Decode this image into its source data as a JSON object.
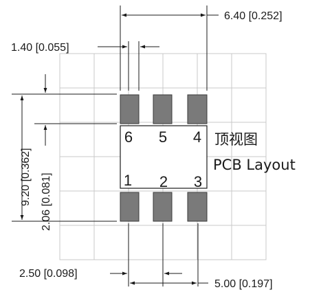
{
  "dimensions": {
    "overall_width": "6.40 [0.252]",
    "pad_width": "1.40 [0.055]",
    "overall_height": "9.20 [0.362]",
    "pad_height": "2.06 [0.081]",
    "pad_length": "2.50 [0.098]",
    "pitch": "5.00 [0.197]"
  },
  "pins": {
    "top": [
      "6",
      "5",
      "4"
    ],
    "bottom": [
      "1",
      "2",
      "3"
    ]
  },
  "title": {
    "chinese": "顶视图",
    "english": "PCB Layout"
  },
  "colors": {
    "pad": "#7a7a7a",
    "grid": "#c8c8c8",
    "line": "#1a1a1a"
  }
}
